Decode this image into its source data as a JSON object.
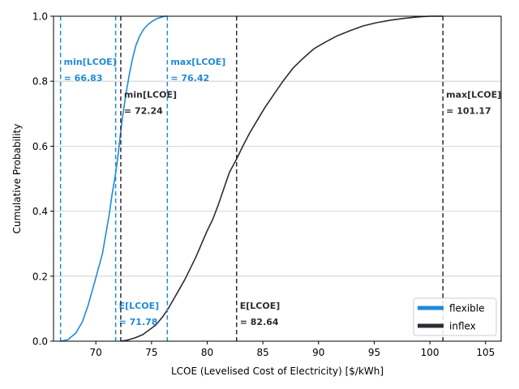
{
  "chart_data": {
    "type": "line",
    "title": "",
    "xlabel": "LCOE (Levelised Cost of Electricity) [$/kWh]",
    "ylabel": "Cumulative Probability",
    "xlim": [
      66.2,
      106.4
    ],
    "ylim": [
      0,
      1
    ],
    "xticks": [
      70,
      75,
      80,
      85,
      90,
      95,
      100,
      105
    ],
    "yticks": [
      0.0,
      0.2,
      0.4,
      0.6,
      0.8,
      1.0
    ],
    "xtick_labels": [
      "70",
      "75",
      "80",
      "85",
      "90",
      "95",
      "100",
      "105"
    ],
    "ytick_labels": [
      "0.0",
      "0.2",
      "0.4",
      "0.6",
      "0.8",
      "1.0"
    ],
    "grid": "horizontal",
    "legend_position": "lower right",
    "series": [
      {
        "name": "flexible",
        "color": "#1f8ad8",
        "x": [
          66.83,
          67.5,
          68.2,
          68.8,
          69.3,
          69.8,
          70.2,
          70.6,
          70.9,
          71.2,
          71.45,
          71.75,
          71.95,
          72.15,
          72.4,
          72.7,
          73.0,
          73.3,
          73.6,
          73.95,
          74.3,
          74.7,
          75.1,
          75.5,
          75.9,
          76.2,
          76.42
        ],
        "y": [
          0.0,
          0.005,
          0.025,
          0.06,
          0.11,
          0.17,
          0.22,
          0.27,
          0.33,
          0.39,
          0.45,
          0.51,
          0.56,
          0.62,
          0.69,
          0.76,
          0.82,
          0.87,
          0.91,
          0.94,
          0.96,
          0.975,
          0.985,
          0.993,
          0.997,
          1.0,
          1.0
        ]
      },
      {
        "name": "inflex",
        "color": "#2e2a33",
        "x": [
          72.24,
          72.8,
          73.5,
          74.2,
          74.8,
          75.4,
          76.0,
          76.5,
          77.0,
          77.5,
          78.0,
          78.5,
          79.0,
          79.5,
          80.0,
          80.5,
          81.0,
          81.5,
          82.0,
          82.64,
          83.2,
          83.8,
          84.5,
          85.2,
          86.0,
          86.8,
          87.7,
          88.6,
          89.6,
          90.6,
          91.7,
          92.8,
          94.0,
          95.2,
          96.5,
          97.8,
          99.0,
          100.0,
          101.17
        ],
        "y": [
          0.0,
          0.003,
          0.01,
          0.02,
          0.035,
          0.05,
          0.075,
          0.1,
          0.13,
          0.16,
          0.19,
          0.225,
          0.26,
          0.3,
          0.34,
          0.375,
          0.42,
          0.47,
          0.52,
          0.56,
          0.6,
          0.64,
          0.68,
          0.72,
          0.76,
          0.8,
          0.84,
          0.87,
          0.9,
          0.92,
          0.94,
          0.955,
          0.97,
          0.98,
          0.988,
          0.994,
          0.998,
          1.0,
          1.0
        ]
      }
    ],
    "vlines": [
      {
        "x": 66.83,
        "series": "flexible",
        "color": "#1f8ad8",
        "label_line1": "min[LCOE]",
        "label_line2": "= 66.83",
        "label_y": 0.85
      },
      {
        "x": 71.78,
        "series": "flexible",
        "color": "#1f8ad8",
        "label_line1": "E[LCOE]",
        "label_line2": "= 71.78",
        "label_y": 0.1
      },
      {
        "x": 76.42,
        "series": "flexible",
        "color": "#1f8ad8",
        "label_line1": "max[LCOE]",
        "label_line2": "= 76.42",
        "label_y": 0.85
      },
      {
        "x": 72.24,
        "series": "inflex",
        "color": "#2e2a33",
        "label_line1": "min[LCOE]",
        "label_line2": "= 72.24",
        "label_y": 0.75
      },
      {
        "x": 82.64,
        "series": "inflex",
        "color": "#2e2a33",
        "label_line1": "E[LCOE]",
        "label_line2": "= 82.64",
        "label_y": 0.1
      },
      {
        "x": 101.17,
        "series": "inflex",
        "color": "#2e2a33",
        "label_line1": "max[LCOE]",
        "label_line2": "= 101.17",
        "label_y": 0.75
      }
    ]
  }
}
